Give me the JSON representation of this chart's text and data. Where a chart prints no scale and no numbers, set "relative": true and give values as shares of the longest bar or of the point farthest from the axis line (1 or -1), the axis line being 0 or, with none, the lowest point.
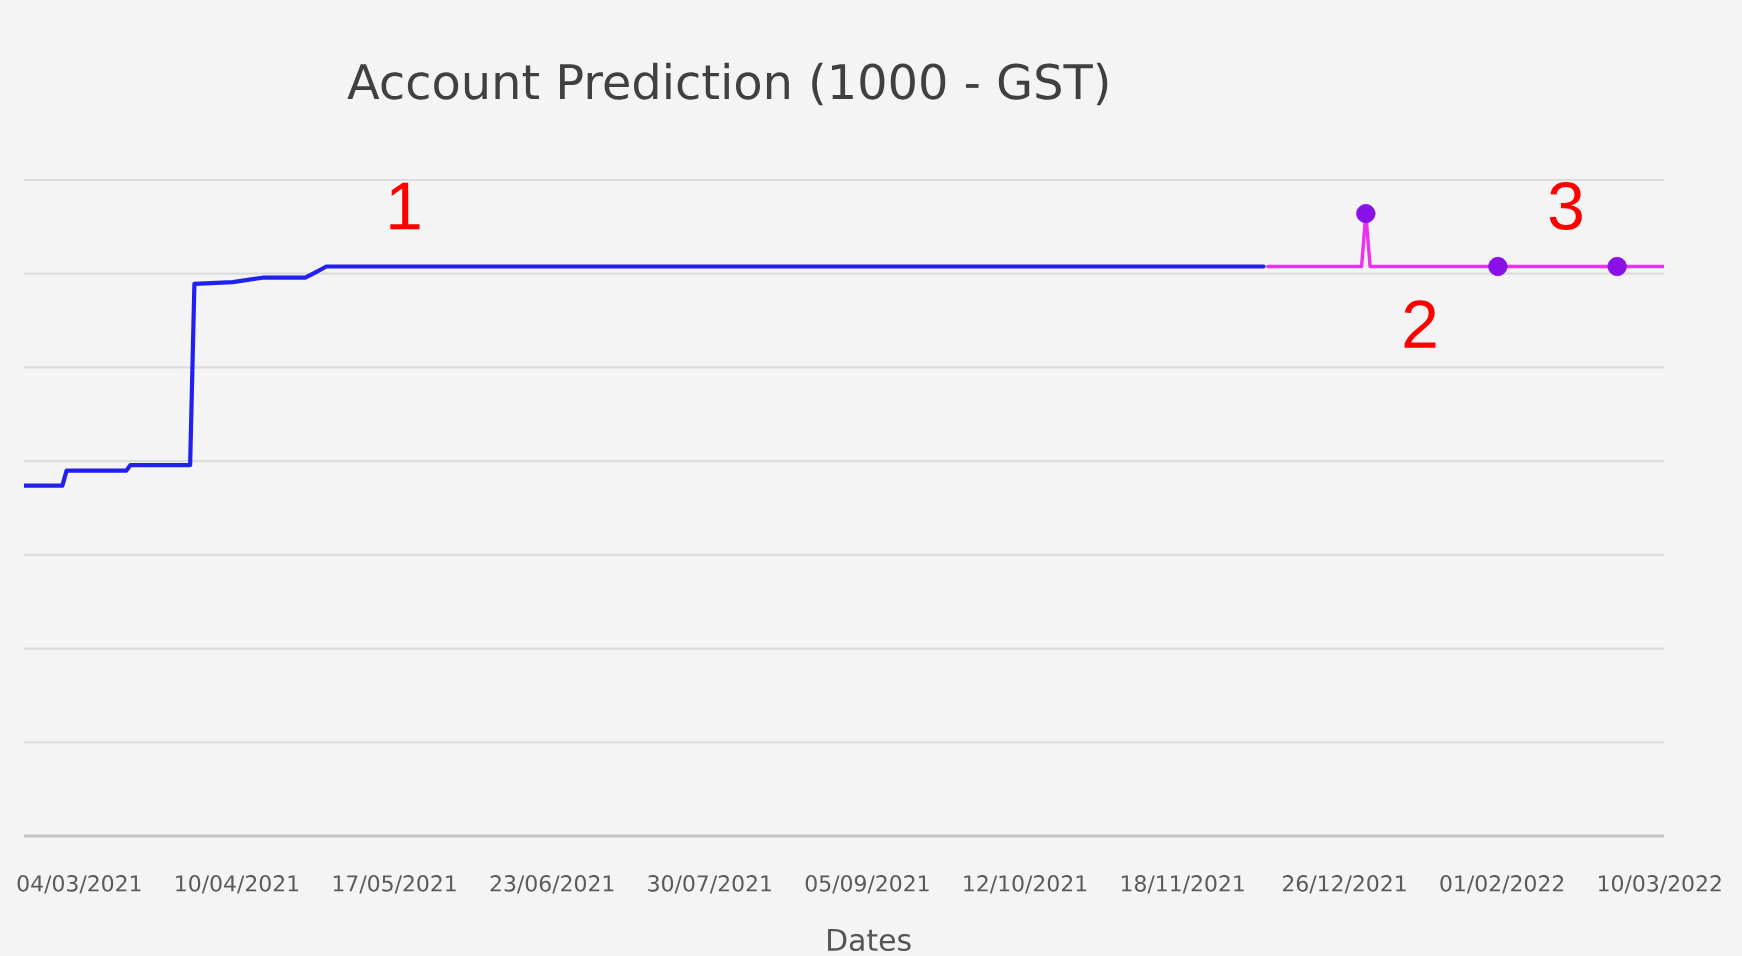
{
  "chart_data": {
    "type": "line",
    "title": "Account Prediction (1000 - GST)",
    "xlabel": "Dates",
    "relative": true,
    "grid": "y",
    "xlim": [
      "2021-02-19",
      "2022-03-11"
    ],
    "xticks": [
      {
        "value": "2021-03-04",
        "label": "04/03/2021"
      },
      {
        "value": "2021-04-10",
        "label": "10/04/2021"
      },
      {
        "value": "2021-05-17",
        "label": "17/05/2021"
      },
      {
        "value": "2021-06-23",
        "label": "23/06/2021"
      },
      {
        "value": "2021-07-30",
        "label": "30/07/2021"
      },
      {
        "value": "2021-09-05",
        "label": "05/09/2021"
      },
      {
        "value": "2021-10-12",
        "label": "12/10/2021"
      },
      {
        "value": "2021-11-18",
        "label": "18/11/2021"
      },
      {
        "value": "2021-12-26",
        "label": "26/12/2021"
      },
      {
        "value": "2022-02-01",
        "label": "01/02/2022"
      },
      {
        "value": "2022-03-10",
        "label": "10/03/2022"
      }
    ],
    "series": [
      {
        "color": "#2020f0",
        "x": [
          "2021-02-19",
          "2021-02-28",
          "2021-03-01",
          "2021-03-15",
          "2021-03-16",
          "2021-03-30",
          "2021-03-31",
          "2021-04-09",
          "2021-04-16",
          "2021-04-26",
          "2021-04-28",
          "2021-05-01",
          "2021-12-07"
        ],
        "values": [
          0.563,
          0.563,
          0.587,
          0.587,
          0.596,
          0.596,
          0.887,
          0.89,
          0.897,
          0.897,
          0.904,
          0.915,
          0.915
        ]
      },
      {
        "color": "#f030f0",
        "x": [
          "2021-12-08",
          "2021-12-30",
          "2021-12-31",
          "2022-01-01",
          "2022-03-11"
        ],
        "values": [
          0.915,
          0.915,
          1.0,
          0.915,
          0.915
        ]
      },
      {
        "type": "scatter",
        "color": "#8a10e8",
        "marker": "circle",
        "x": [
          "2021-12-31",
          "2022-01-31",
          "2022-02-28"
        ],
        "values": [
          1.0,
          0.915,
          0.915
        ]
      }
    ],
    "annotations": [
      "1",
      "2",
      "3"
    ]
  }
}
